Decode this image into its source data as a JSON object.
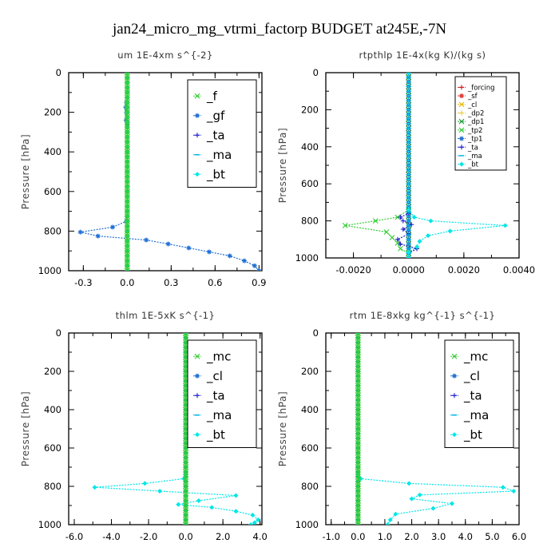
{
  "figure": {
    "title": "jan24_micro_mg_vtrmi_factorp  BUDGET at245E,-7N"
  },
  "chart_data": [
    {
      "type": "line",
      "title": "um   1E-4xm  s^{-2}",
      "ylabel": "Pressure [hPa]",
      "xlim": [
        -0.4,
        0.92
      ],
      "ylim": [
        1000,
        0
      ],
      "xticks": [
        -0.3,
        0.0,
        0.3,
        0.6,
        0.9
      ],
      "xtick_labels": [
        "-0.3",
        "0.0",
        "0.3",
        "0.6",
        "0.9"
      ],
      "yticks": [
        0,
        200,
        400,
        600,
        800,
        1000
      ],
      "ytick_labels": [
        "0",
        "200",
        "400",
        "600",
        "800",
        "1000"
      ],
      "legend_position": "top-right",
      "legend_style": "large",
      "series": [
        {
          "name": "_f",
          "color": "#33cc33",
          "marker": "x",
          "points": [
            [
              0,
              1000
            ],
            [
              0,
              950
            ],
            [
              0,
              900
            ],
            [
              0,
              850
            ],
            [
              0,
              800
            ],
            [
              0,
              750
            ],
            [
              0,
              700
            ],
            [
              0,
              600
            ],
            [
              0,
              500
            ],
            [
              0,
              400
            ],
            [
              0,
              300
            ],
            [
              0,
              200
            ],
            [
              0,
              100
            ],
            [
              0,
              0
            ]
          ]
        },
        {
          "name": "_gf",
          "color": "#1f6fd6",
          "marker": "star",
          "points": [
            [
              0,
              0
            ],
            [
              0,
              50
            ],
            [
              0,
              100
            ],
            [
              -0.005,
              150
            ],
            [
              -0.01,
              175
            ],
            [
              -0.005,
              200
            ],
            [
              -0.008,
              240
            ],
            [
              0,
              260
            ],
            [
              0,
              400
            ],
            [
              0,
              600
            ],
            [
              0,
              700
            ],
            [
              -0.005,
              750
            ],
            [
              -0.1,
              780
            ],
            [
              -0.32,
              805
            ],
            [
              -0.2,
              825
            ],
            [
              0.13,
              845
            ],
            [
              0.28,
              865
            ],
            [
              0.42,
              885
            ],
            [
              0.56,
              905
            ],
            [
              0.7,
              925
            ],
            [
              0.8,
              950
            ],
            [
              0.87,
              975
            ],
            [
              0.9,
              1000
            ]
          ]
        },
        {
          "name": "_ta",
          "color": "#1a1acc",
          "marker": "plus",
          "points": [
            [
              0,
              0
            ],
            [
              0,
              1000
            ]
          ]
        },
        {
          "name": "_ma",
          "color": "#00b3e6",
          "marker": "dash",
          "points": [
            [
              0,
              0
            ],
            [
              0,
              1000
            ]
          ]
        },
        {
          "name": "_bt",
          "color": "#00e6e6",
          "marker": "diamond",
          "points": [
            [
              0,
              0
            ],
            [
              0,
              1000
            ]
          ]
        }
      ]
    },
    {
      "type": "line",
      "title": "rtpthlp   1E-4x(kg K)/(kg s)",
      "ylabel": "Pressure [hPa]",
      "xlim": [
        -0.003,
        0.004
      ],
      "ylim": [
        1000,
        0
      ],
      "xticks": [
        -0.002,
        0.0,
        0.002,
        0.004
      ],
      "xtick_labels": [
        "-0.0020",
        "0.0000",
        "0.0020",
        "0.0040"
      ],
      "yticks": [
        0,
        200,
        400,
        600,
        800,
        1000
      ],
      "ytick_labels": [
        "0",
        "200",
        "400",
        "600",
        "800",
        "1000"
      ],
      "legend_position": "top-right",
      "legend_style": "small",
      "series": [
        {
          "name": "_forcing",
          "color": "#cc1a1a",
          "marker": "plus",
          "points": [
            [
              0,
              0
            ],
            [
              0,
              1000
            ]
          ]
        },
        {
          "name": "_sf",
          "color": "#e63333",
          "marker": "star",
          "points": [
            [
              0,
              0
            ],
            [
              0,
              1000
            ]
          ]
        },
        {
          "name": "_cl",
          "color": "#e6b800",
          "marker": "x",
          "points": [
            [
              0,
              0
            ],
            [
              0,
              1000
            ]
          ]
        },
        {
          "name": "_dp2",
          "color": "#e6cc33",
          "marker": "plus",
          "points": [
            [
              0,
              0
            ],
            [
              0,
              1000
            ]
          ]
        },
        {
          "name": "_dp1",
          "color": "#1a9933",
          "marker": "x",
          "points": [
            [
              0,
              0
            ],
            [
              0,
              1000
            ]
          ]
        },
        {
          "name": "_tp2",
          "color": "#33cc33",
          "marker": "x",
          "points": [
            [
              0,
              0
            ],
            [
              0,
              740
            ],
            [
              -0.0004,
              780
            ],
            [
              -0.0012,
              800
            ],
            [
              -0.0023,
              825
            ],
            [
              -0.0008,
              860
            ],
            [
              -0.0006,
              890
            ],
            [
              -0.0004,
              920
            ],
            [
              -0.0003,
              950
            ],
            [
              0,
              975
            ],
            [
              0,
              1000
            ]
          ]
        },
        {
          "name": "_tp1",
          "color": "#1f6fd6",
          "marker": "star",
          "points": [
            [
              0,
              0
            ],
            [
              0,
              1000
            ]
          ]
        },
        {
          "name": "_ta",
          "color": "#1a1acc",
          "marker": "plus",
          "points": [
            [
              0,
              0
            ],
            [
              0,
              760
            ],
            [
              -0.0003,
              780
            ],
            [
              -0.0002,
              800
            ],
            [
              0.0001,
              820
            ],
            [
              -0.0002,
              845
            ],
            [
              0,
              870
            ],
            [
              -0.0004,
              900
            ],
            [
              -0.0003,
              925
            ],
            [
              0.0003,
              950
            ],
            [
              0,
              975
            ],
            [
              0,
              1000
            ]
          ]
        },
        {
          "name": "_ma",
          "color": "#00b3e6",
          "marker": "dash",
          "points": [
            [
              0,
              0
            ],
            [
              0,
              1000
            ]
          ]
        },
        {
          "name": "_bt",
          "color": "#00e6e6",
          "marker": "diamond",
          "points": [
            [
              0,
              0
            ],
            [
              0,
              740
            ],
            [
              0.0002,
              780
            ],
            [
              0.0008,
              800
            ],
            [
              0.0035,
              825
            ],
            [
              0.0015,
              855
            ],
            [
              0.0007,
              880
            ],
            [
              0.0004,
              910
            ],
            [
              0.0003,
              940
            ],
            [
              0,
              970
            ],
            [
              0,
              1000
            ]
          ]
        }
      ]
    },
    {
      "type": "line",
      "title": "thlm   1E-5xK  s^{-1}",
      "ylabel": "Pressure [hPa]",
      "xlim": [
        -6.3,
        4.1
      ],
      "ylim": [
        1000,
        0
      ],
      "xticks": [
        -6.0,
        -4.0,
        -2.0,
        0.0,
        2.0,
        4.0
      ],
      "xtick_labels": [
        "-6.0",
        "-4.0",
        "-2.0",
        "0.0",
        "2.0",
        "4.0"
      ],
      "yticks": [
        0,
        200,
        400,
        600,
        800,
        1000
      ],
      "ytick_labels": [
        "0",
        "200",
        "400",
        "600",
        "800",
        "1000"
      ],
      "legend_position": "top-right",
      "legend_style": "large",
      "series": [
        {
          "name": "_mc",
          "color": "#33cc33",
          "marker": "x",
          "points": [
            [
              0,
              0
            ],
            [
              0,
              100
            ],
            [
              0,
              200
            ],
            [
              0,
              300
            ],
            [
              0,
              400
            ],
            [
              0,
              500
            ],
            [
              0,
              600
            ],
            [
              0,
              700
            ],
            [
              0,
              800
            ],
            [
              0,
              900
            ],
            [
              0,
              1000
            ]
          ]
        },
        {
          "name": "_cl",
          "color": "#1f6fd6",
          "marker": "star",
          "points": [
            [
              0,
              0
            ],
            [
              0,
              1000
            ]
          ]
        },
        {
          "name": "_ta",
          "color": "#1a1acc",
          "marker": "plus",
          "points": [
            [
              0,
              0
            ],
            [
              0,
              1000
            ]
          ]
        },
        {
          "name": "_ma",
          "color": "#00b3e6",
          "marker": "dash",
          "points": [
            [
              0,
              0
            ],
            [
              0,
              1000
            ]
          ]
        },
        {
          "name": "_bt",
          "color": "#00e6e6",
          "marker": "diamond",
          "points": [
            [
              0,
              0
            ],
            [
              0,
              740
            ],
            [
              -0.1,
              760
            ],
            [
              -2.2,
              785
            ],
            [
              -4.9,
              805
            ],
            [
              -1.4,
              825
            ],
            [
              2.7,
              848
            ],
            [
              0.7,
              875
            ],
            [
              -0.4,
              895
            ],
            [
              1.4,
              910
            ],
            [
              2.7,
              930
            ],
            [
              3.6,
              950
            ],
            [
              3.9,
              975
            ],
            [
              3.7,
              990
            ],
            [
              3.5,
              1000
            ]
          ]
        }
      ]
    },
    {
      "type": "line",
      "title": "rtm   1E-8xkg kg^{-1} s^{-1}",
      "ylabel": "Pressure [hPa]",
      "xlim": [
        -1.2,
        6.0
      ],
      "ylim": [
        1000,
        0
      ],
      "xticks": [
        -1.0,
        0.0,
        1.0,
        2.0,
        3.0,
        4.0,
        5.0,
        6.0
      ],
      "xtick_labels": [
        "-1.0",
        "0.0",
        "1.0",
        "2.0",
        "3.0",
        "4.0",
        "5.0",
        "6.0"
      ],
      "yticks": [
        0,
        200,
        400,
        600,
        800,
        1000
      ],
      "ytick_labels": [
        "0",
        "200",
        "400",
        "600",
        "800",
        "1000"
      ],
      "legend_position": "top-right",
      "legend_style": "large",
      "series": [
        {
          "name": "_mc",
          "color": "#33cc33",
          "marker": "x",
          "points": [
            [
              0,
              0
            ],
            [
              0,
              100
            ],
            [
              0,
              200
            ],
            [
              0,
              300
            ],
            [
              0,
              400
            ],
            [
              0,
              500
            ],
            [
              0,
              600
            ],
            [
              0,
              700
            ],
            [
              0,
              800
            ],
            [
              0,
              900
            ],
            [
              0,
              1000
            ]
          ]
        },
        {
          "name": "_cl",
          "color": "#1f6fd6",
          "marker": "star",
          "points": [
            [
              0,
              0
            ],
            [
              0,
              1000
            ]
          ]
        },
        {
          "name": "_ta",
          "color": "#1a1acc",
          "marker": "plus",
          "points": [
            [
              0,
              0
            ],
            [
              0,
              1000
            ]
          ]
        },
        {
          "name": "_ma",
          "color": "#00b3e6",
          "marker": "dash",
          "points": [
            [
              0,
              0
            ],
            [
              0,
              1000
            ]
          ]
        },
        {
          "name": "_bt",
          "color": "#00e6e6",
          "marker": "diamond",
          "points": [
            [
              0,
              0
            ],
            [
              0,
              740
            ],
            [
              0.1,
              760
            ],
            [
              1.9,
              785
            ],
            [
              5.4,
              805
            ],
            [
              5.8,
              825
            ],
            [
              2.3,
              845
            ],
            [
              2.0,
              865
            ],
            [
              3.5,
              890
            ],
            [
              2.8,
              915
            ],
            [
              1.4,
              945
            ],
            [
              1.2,
              975
            ],
            [
              1.1,
              1000
            ]
          ]
        }
      ]
    }
  ]
}
